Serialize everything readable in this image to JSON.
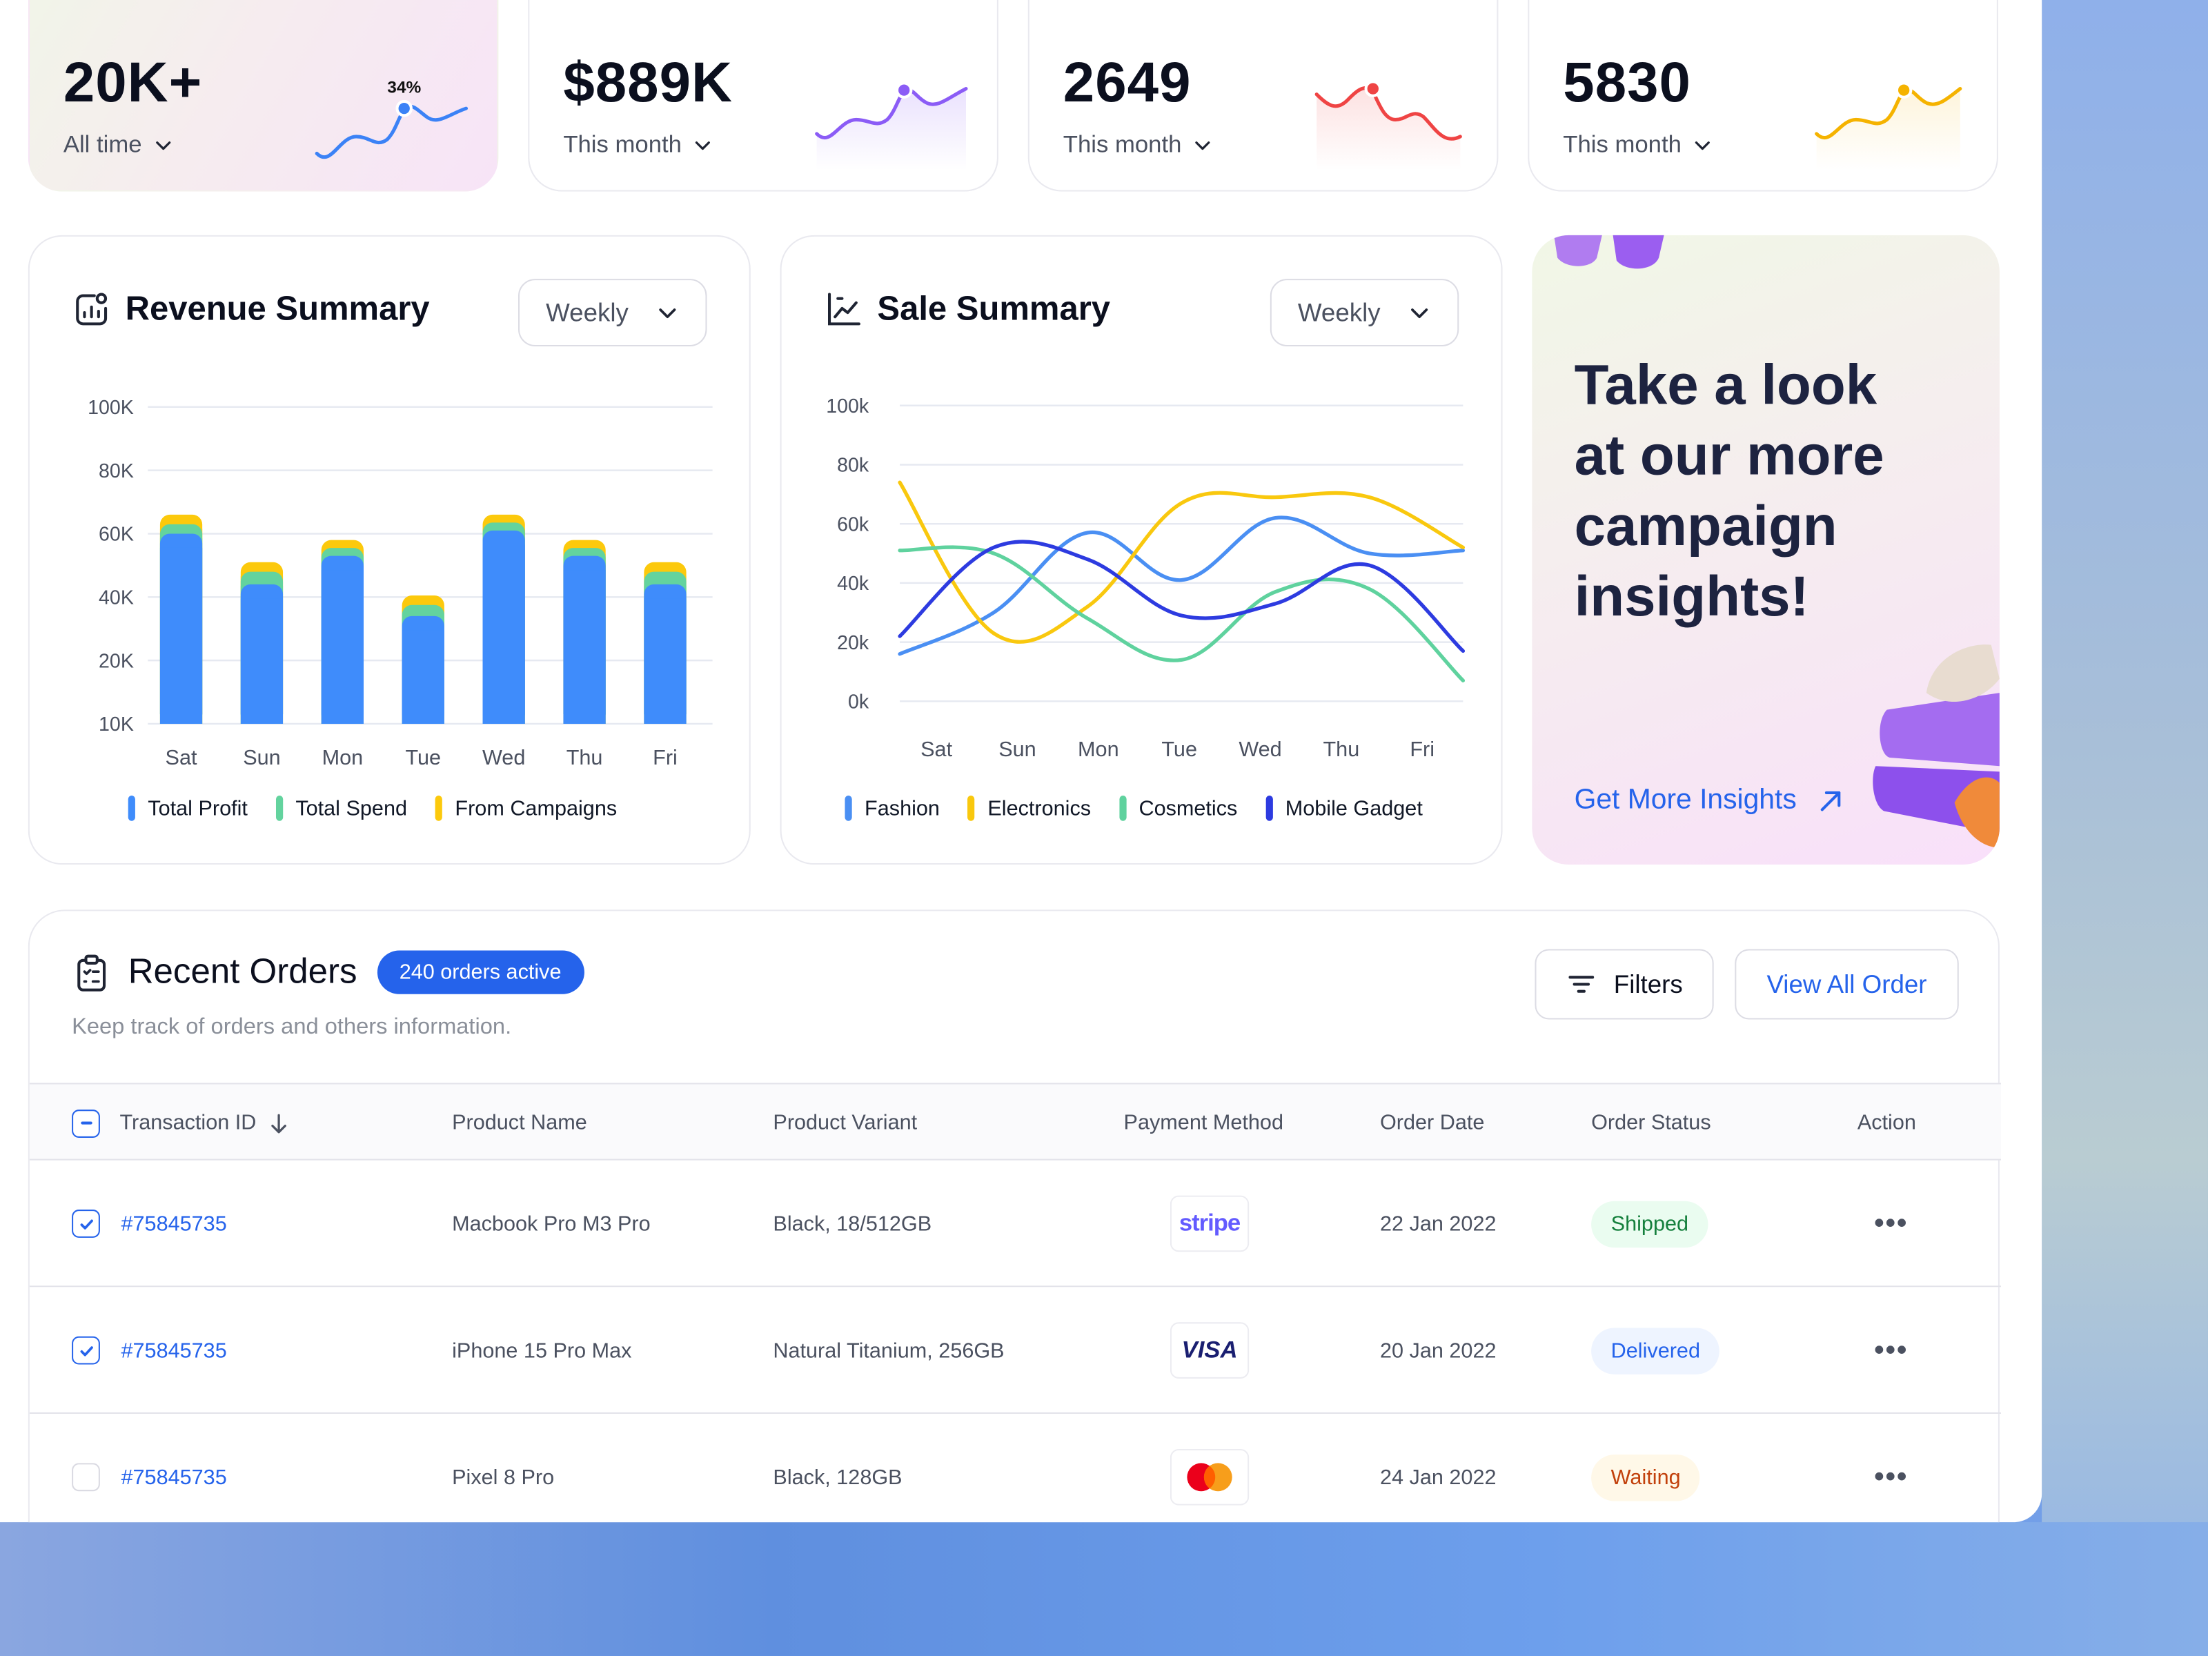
{
  "colors": {
    "accent": "#2563eb",
    "blue": "#3b82f6",
    "green": "#5fd29e",
    "yellow": "#fbc70b",
    "navy": "#2c3ce0",
    "purple": "#8b5cf6",
    "red": "#ef4444",
    "amber": "#f5b300"
  },
  "stats": [
    {
      "value": "20K+",
      "period": "All time",
      "badge": "34%",
      "spark_color": "#3b82f6"
    },
    {
      "value": "$889K",
      "period": "This month",
      "spark_color": "#8b5cf6"
    },
    {
      "value": "2649",
      "period": "This month",
      "spark_color": "#ef4444"
    },
    {
      "value": "5830",
      "period": "This month",
      "spark_color": "#f5b300"
    }
  ],
  "revenue": {
    "title": "Revenue Summary",
    "range": "Weekly",
    "legend": [
      "Total Profit",
      "Total Spend",
      "From Campaigns"
    ]
  },
  "sales": {
    "title": "Sale Summary",
    "range": "Weekly",
    "legend": [
      "Fashion",
      "Electronics",
      "Cosmetics",
      "Mobile Gadget"
    ]
  },
  "promo": {
    "headline": "Take a look at our more campaign insights!",
    "cta": "Get More Insights"
  },
  "orders": {
    "title": "Recent Orders",
    "badge": "240 orders active",
    "subtitle": "Keep track of orders and others information.",
    "filters_label": "Filters",
    "view_all_label": "View All Order",
    "columns": [
      "Transaction ID",
      "Product Name",
      "Product Variant",
      "Payment Method",
      "Order Date",
      "Order Status",
      "Action"
    ],
    "rows": [
      {
        "checked": true,
        "id": "#75845735",
        "product": "Macbook Pro M3 Pro",
        "variant": "Black, 18/512GB",
        "payment": "stripe",
        "date": "22 Jan 2022",
        "status": "Shipped",
        "status_fg": "#15803d",
        "status_bg": "#eafcf0"
      },
      {
        "checked": true,
        "id": "#75845735",
        "product": "iPhone 15 Pro Max",
        "variant": "Natural Titanium, 256GB",
        "payment": "VISA",
        "date": "20 Jan 2022",
        "status": "Delivered",
        "status_fg": "#2563eb",
        "status_bg": "#eef4ff"
      },
      {
        "checked": false,
        "id": "#75845735",
        "product": "Pixel 8 Pro",
        "variant": "Black, 128GB",
        "payment": "mastercard",
        "date": "24 Jan 2022",
        "status": "Waiting",
        "status_fg": "#c2410c",
        "status_bg": "#fff8e8"
      }
    ],
    "action_label": "•••"
  },
  "chart_data": [
    {
      "type": "bar",
      "title": "Revenue Summary",
      "stacked": true,
      "categories": [
        "Sat",
        "Sun",
        "Mon",
        "Tue",
        "Wed",
        "Thu",
        "Fri"
      ],
      "yticks": [
        "100K",
        "80K",
        "60K",
        "40K",
        "20K",
        "10K"
      ],
      "series": [
        {
          "name": "Total Profit",
          "color": "#3f8cfb",
          "values": [
            60,
            44,
            53,
            34,
            61,
            53,
            44
          ]
        },
        {
          "name": "Total Spend",
          "color": "#63d39e",
          "values": [
            3,
            4,
            2.5,
            3.5,
            2.5,
            2.5,
            4
          ]
        },
        {
          "name": "From Campaigns",
          "color": "#fcc90c",
          "values": [
            3,
            3,
            2.5,
            3,
            2.5,
            2.5,
            3
          ]
        }
      ],
      "ylabel": "",
      "xlabel": "",
      "legend_position": "bottom",
      "grid": true
    },
    {
      "type": "line",
      "title": "Sale Summary",
      "categories": [
        "Sat",
        "Sun",
        "Mon",
        "Tue",
        "Wed",
        "Thu",
        "Fri"
      ],
      "yticks": [
        "100k",
        "80k",
        "60k",
        "40k",
        "20k",
        "0k"
      ],
      "ylim": [
        0,
        100
      ],
      "series": [
        {
          "name": "Fashion",
          "color": "#4a8ff3",
          "values": [
            16,
            30,
            57,
            41,
            62,
            50,
            51
          ]
        },
        {
          "name": "Electronics",
          "color": "#f9c80e",
          "values": [
            74,
            23,
            32,
            67,
            69,
            69,
            52
          ]
        },
        {
          "name": "Cosmetics",
          "color": "#5fd29e",
          "values": [
            51,
            50,
            28,
            14,
            37,
            38,
            7
          ]
        },
        {
          "name": "Mobile Gadget",
          "color": "#2d3be0",
          "values": [
            22,
            52,
            48,
            29,
            33,
            46,
            17
          ]
        }
      ],
      "legend_position": "bottom",
      "grid": true
    }
  ]
}
